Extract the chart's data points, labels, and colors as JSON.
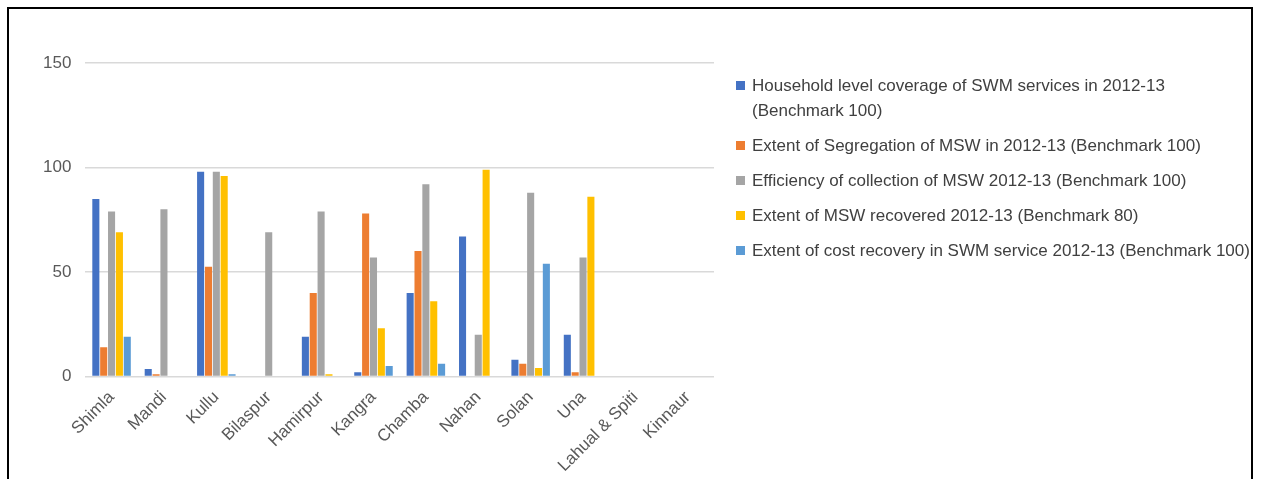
{
  "chart_data": {
    "type": "bar",
    "categories": [
      "Shimla",
      "Mandi",
      "Kullu",
      "Bilaspur",
      "Hamirpur",
      "Kangra",
      "Chamba",
      "Nahan",
      "Solan",
      "Una",
      "Lahual & Spiti",
      "Kinnaur"
    ],
    "series": [
      {
        "name": "Household level coverage of SWM services in 2012-13 (Benchmark 100)",
        "color": "#4472c4",
        "values": [
          85,
          3.5,
          98,
          0,
          19,
          2,
          40,
          67,
          8,
          20,
          0,
          0
        ]
      },
      {
        "name": "Extent of Segregation of MSW in 2012-13 (Benchmark 100)",
        "color": "#ed7d31",
        "values": [
          14,
          1,
          52.5,
          0,
          40,
          78,
          60,
          0,
          6,
          2,
          0,
          0
        ]
      },
      {
        "name": "Efficiency of collection of MSW 2012-13 (Benchmark 100)",
        "color": "#a5a5a5",
        "values": [
          79,
          80,
          98,
          69,
          79,
          57,
          92,
          20,
          88,
          57,
          0,
          0
        ]
      },
      {
        "name": "Extent of MSW recovered 2012-13  (Benchmark 80)",
        "color": "#ffc000",
        "values": [
          69,
          0,
          96,
          0,
          1,
          23,
          36,
          99,
          4,
          86,
          0,
          0
        ]
      },
      {
        "name": "Extent of cost recovery in SWM service 2012-13 (Benchmark 100)",
        "color": "#5b9bd5",
        "values": [
          19,
          0,
          1,
          0,
          0,
          5,
          6,
          0,
          54,
          0,
          0,
          0
        ]
      }
    ],
    "ylim": [
      0,
      150
    ],
    "yticks": [
      0,
      50,
      100,
      150
    ],
    "grid": "y",
    "legend": "right"
  }
}
